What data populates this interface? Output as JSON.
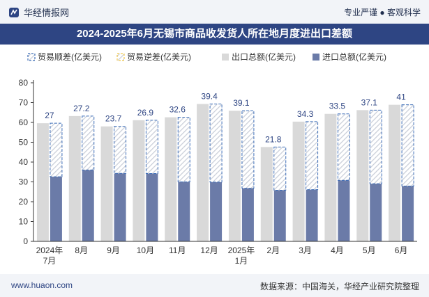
{
  "header": {
    "brand": "华经情报网",
    "tagline": "专业严谨 ● 客观科学",
    "title": "2024-2025年6月无锡市商品收发货人所在地月度进出口差额"
  },
  "footer": {
    "website": "www.huaon.com",
    "source": "数据来源：中国海关，华经产业研究院整理"
  },
  "colors": {
    "export_total": "#d9d9d9",
    "import_total": "#6b7ba8",
    "surplus_border": "#3c6db8",
    "deficit_border": "#f2c94c",
    "hatch": "#c9ced8",
    "header_bg": "#2e4583"
  },
  "chart_data": {
    "type": "bar",
    "categories": [
      "2024年\n7月",
      "8月",
      "9月",
      "10月",
      "11月",
      "12月",
      "2025年\n1月",
      "2月",
      "3月",
      "4月",
      "5月",
      "6月"
    ],
    "series": [
      {
        "name": "贸易顺差(亿美元)",
        "values": [
          27,
          27.2,
          23.7,
          26.9,
          32.6,
          39.4,
          39.1,
          21.8,
          34.3,
          33.5,
          37.1,
          41
        ]
      },
      {
        "name": "贸易逆差(亿美元)",
        "values": [
          0,
          0,
          0,
          0,
          0,
          0,
          0,
          0,
          0,
          0,
          0,
          0
        ]
      },
      {
        "name": "出口总额(亿美元)",
        "values": [
          59.6,
          63.2,
          58.0,
          61.1,
          62.6,
          69.3,
          65.9,
          47.6,
          60.4,
          64.3,
          66.2,
          68.9
        ]
      },
      {
        "name": "进口总额(亿美元)",
        "values": [
          32.6,
          36.0,
          34.3,
          34.2,
          30.0,
          29.9,
          26.8,
          25.8,
          26.1,
          30.8,
          29.1,
          27.9
        ]
      }
    ],
    "data_labels": [
      "27",
      "27.2",
      "23.7",
      "26.9",
      "32.6",
      "39.4",
      "39.1",
      "21.8",
      "34.3",
      "33.5",
      "37.1",
      "41"
    ],
    "ylim": [
      0,
      80
    ],
    "yticks": [
      0,
      10,
      20,
      30,
      40,
      50,
      60,
      70,
      80
    ],
    "grid": false,
    "legend": "top"
  }
}
